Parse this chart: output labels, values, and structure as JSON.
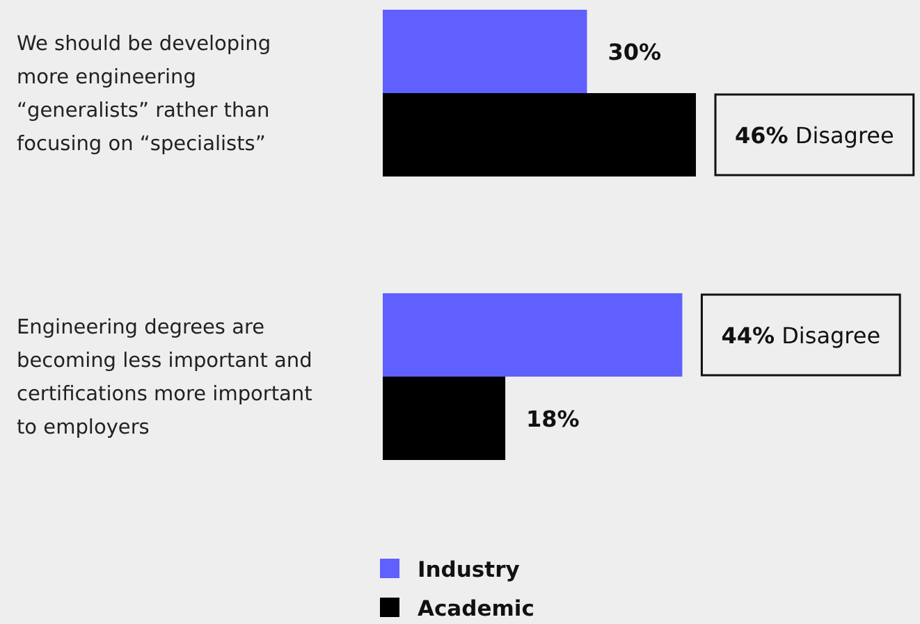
{
  "chart_data": {
    "type": "bar",
    "orientation": "horizontal",
    "categories": [
      "We should be developing more engineering “generalists” rather than focusing on “specialists”",
      "Engineering degrees are becoming less important and certifications more important to employers"
    ],
    "series": [
      {
        "name": "Industry",
        "color": "#6060ff",
        "values": [
          30,
          44
        ],
        "value_labels": [
          "30%",
          "44% Disagree"
        ]
      },
      {
        "name": "Academic",
        "color": "#000000",
        "values": [
          46,
          18
        ],
        "value_labels": [
          "46% Disagree",
          "18%"
        ]
      }
    ],
    "legend": "bottom"
  }
}
